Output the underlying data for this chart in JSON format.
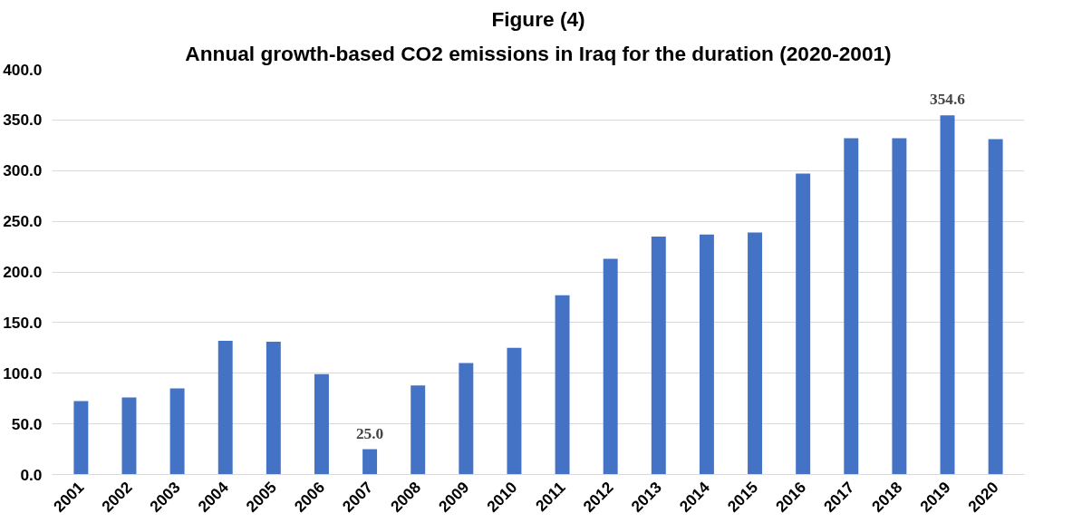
{
  "chart_data": {
    "type": "bar",
    "title": "Figure (4)",
    "subtitle": "Annual growth-based CO2 emissions in Iraq for the duration (2020-2001)",
    "categories": [
      "2001",
      "2002",
      "2003",
      "2004",
      "2005",
      "2006",
      "2007",
      "2008",
      "2009",
      "2010",
      "2011",
      "2012",
      "2013",
      "2014",
      "2015",
      "2016",
      "2017",
      "2018",
      "2019",
      "2020"
    ],
    "values": [
      72.5,
      76,
      85,
      132,
      131,
      99,
      25.0,
      88,
      110,
      125,
      177,
      213,
      235,
      237,
      239,
      297,
      332,
      332,
      354.6,
      331
    ],
    "value_labels": [
      null,
      null,
      null,
      null,
      null,
      null,
      "25.0",
      null,
      null,
      null,
      null,
      null,
      null,
      null,
      null,
      null,
      null,
      null,
      "354.6",
      null
    ],
    "color": "#4472c4",
    "ylim": [
      0,
      400
    ],
    "yticks": [
      {
        "value": 0,
        "label": "0.0"
      },
      {
        "value": 50,
        "label": "50.0"
      },
      {
        "value": 100,
        "label": "100.0"
      },
      {
        "value": 150,
        "label": "150.0"
      },
      {
        "value": 200,
        "label": "200.0"
      },
      {
        "value": 250,
        "label": "250.0"
      },
      {
        "value": 300,
        "label": "300.0"
      },
      {
        "value": 350,
        "label": "350.0"
      },
      {
        "value": 400,
        "label": "400.0"
      }
    ],
    "grid": "y"
  }
}
